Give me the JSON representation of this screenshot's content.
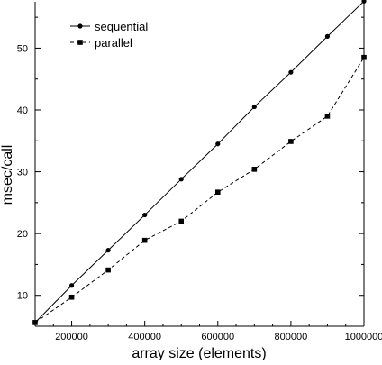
{
  "chart_data": {
    "type": "line",
    "title": "",
    "xlabel": "array size (elements)",
    "ylabel": "msec/call",
    "xlim": [
      100000,
      1000000
    ],
    "ylim": [
      5,
      57.5
    ],
    "xticks": [
      200000,
      400000,
      600000,
      800000,
      1000000
    ],
    "xtick_labels": [
      "200000",
      "400000",
      "600000",
      "800000",
      "1000000"
    ],
    "yticks": [
      10,
      20,
      30,
      40,
      50
    ],
    "ytick_labels": [
      "10",
      "20",
      "30",
      "40",
      "50"
    ],
    "grid": false,
    "legend_position": "top-left",
    "series": [
      {
        "name": "sequential",
        "line_style": "solid",
        "marker": "circle",
        "color": "#000000",
        "x": [
          100000,
          200000,
          300000,
          400000,
          500000,
          600000,
          700000,
          800000,
          900000,
          1000000
        ],
        "y": [
          5.6,
          11.6,
          17.3,
          23.0,
          28.8,
          34.5,
          40.5,
          46.1,
          51.9,
          57.6
        ]
      },
      {
        "name": "parallel",
        "line_style": "dashed",
        "marker": "square",
        "color": "#000000",
        "x": [
          100000,
          200000,
          300000,
          400000,
          500000,
          600000,
          700000,
          800000,
          900000,
          1000000
        ],
        "y": [
          5.6,
          9.7,
          14.1,
          18.9,
          22.0,
          26.7,
          30.4,
          34.9,
          39.0,
          48.5
        ]
      }
    ]
  }
}
